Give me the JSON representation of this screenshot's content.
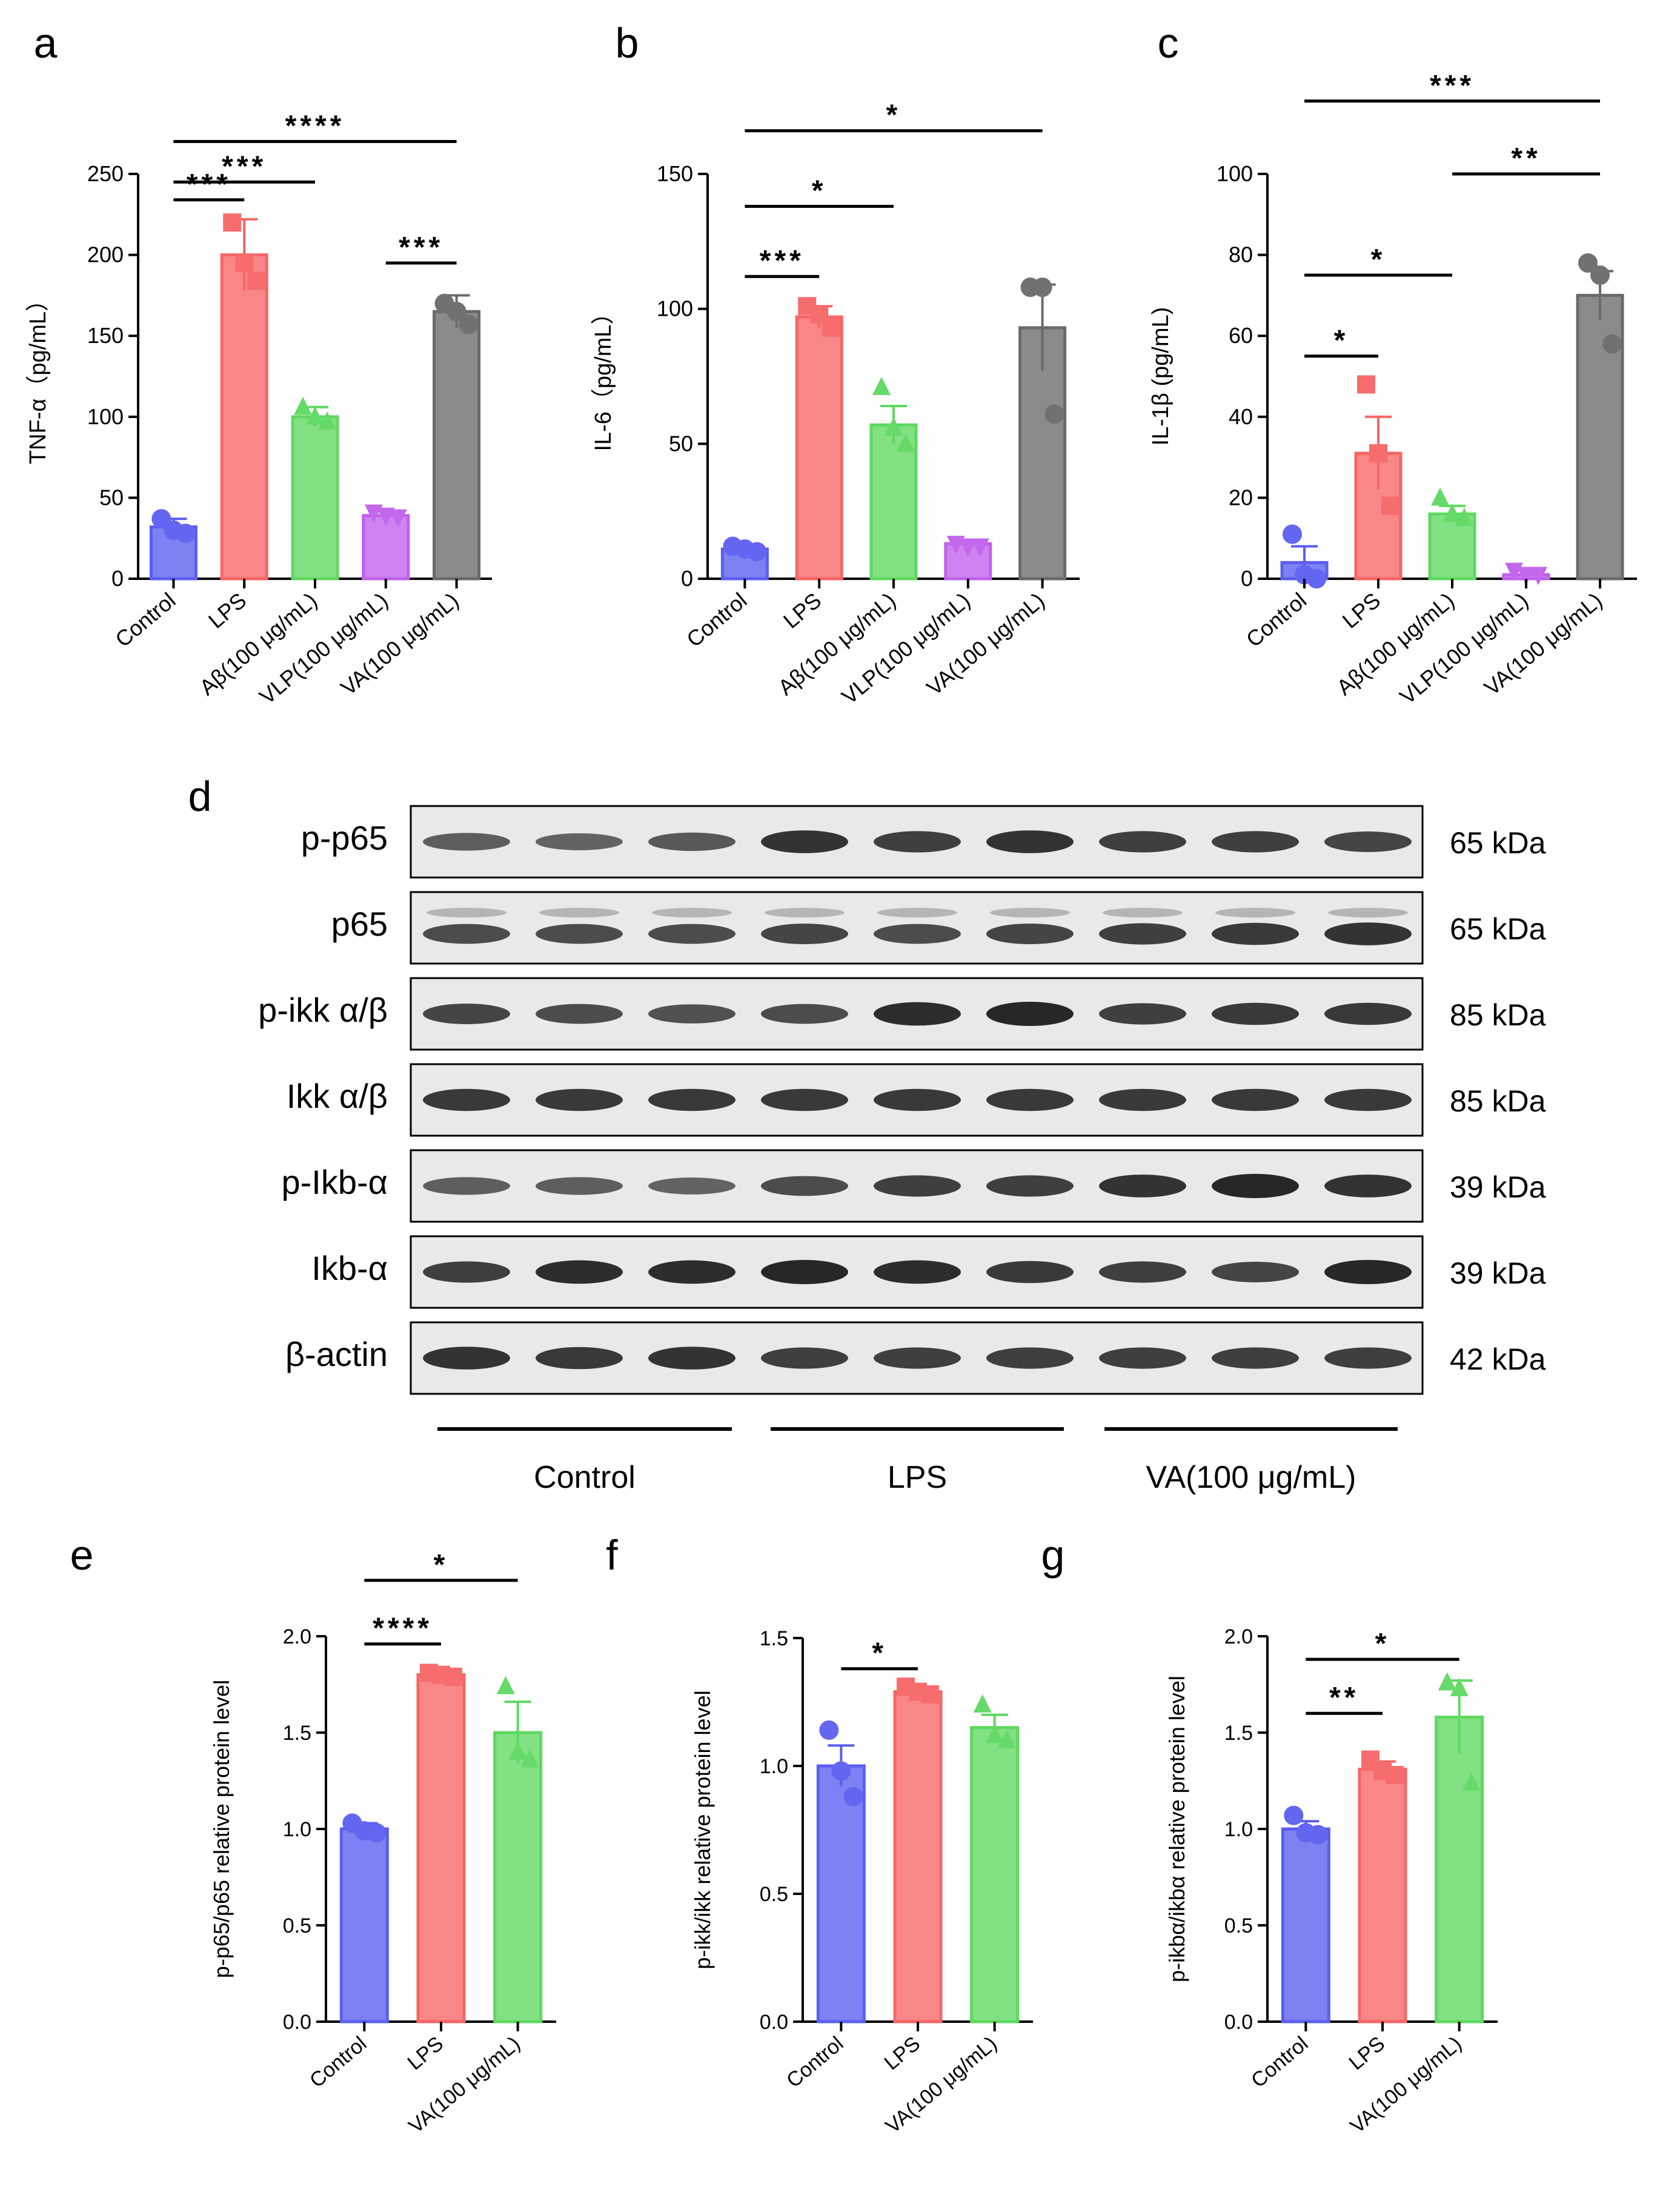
{
  "colors": {
    "control": "#5a5ef0",
    "lps": "#f76565",
    "abeta": "#5ed860",
    "vlp": "#c060ec",
    "va": "#6a6a6a",
    "axis": "#000000",
    "blot_bg": "#e9e9e9",
    "band": "#1c1c1c"
  },
  "chart_data": [
    {
      "id": "a",
      "panel_letter": "a",
      "type": "bar",
      "ylabel": "TNF-α（pg/mL）",
      "ylim": [
        0,
        250
      ],
      "yticks": [
        0,
        50,
        100,
        150,
        200,
        250
      ],
      "categories": [
        "Control",
        "LPS",
        "Aβ(100 μg/mL)",
        "VLP(100 μg/mL)",
        "VA(100 μg/mL)"
      ],
      "values": [
        32,
        200,
        100,
        39,
        165
      ],
      "errors": [
        5,
        22,
        6,
        3,
        10
      ],
      "points": [
        [
          37,
          30,
          28
        ],
        [
          220,
          195,
          184
        ],
        [
          106,
          100,
          97
        ],
        [
          41,
          39,
          38
        ],
        [
          170,
          165,
          157
        ]
      ],
      "markers": [
        "circle",
        "square",
        "triangle",
        "triangle-down",
        "circle"
      ],
      "sig": [
        {
          "from": 0,
          "to": 4,
          "label": "****",
          "y": 270
        },
        {
          "from": 0,
          "to": 2,
          "label": "***",
          "y": 245
        },
        {
          "from": 0,
          "to": 1,
          "label": "***",
          "y": 234
        },
        {
          "from": 3,
          "to": 4,
          "label": "***",
          "y": 195
        }
      ]
    },
    {
      "id": "b",
      "panel_letter": "b",
      "type": "bar",
      "ylabel": "IL-6（pg/mL）",
      "ylim": [
        0,
        150
      ],
      "yticks": [
        0,
        50,
        100,
        150
      ],
      "categories": [
        "Control",
        "LPS",
        "Aβ(100 μg/mL)",
        "VLP(100 μg/mL)",
        "VA(100 μg/mL)"
      ],
      "values": [
        11,
        97,
        57,
        13,
        93
      ],
      "errors": [
        1,
        4,
        7,
        1,
        16
      ],
      "points": [
        [
          12,
          11,
          10
        ],
        [
          101,
          98,
          93
        ],
        [
          71,
          56,
          50
        ],
        [
          13,
          12,
          12
        ],
        [
          108,
          108,
          61
        ]
      ],
      "markers": [
        "circle",
        "square",
        "triangle",
        "triangle-down",
        "circle"
      ],
      "sig": [
        {
          "from": 0,
          "to": 4,
          "label": "*",
          "y": 166
        },
        {
          "from": 0,
          "to": 2,
          "label": "*",
          "y": 138
        },
        {
          "from": 0,
          "to": 1,
          "label": "***",
          "y": 112
        }
      ]
    },
    {
      "id": "c",
      "panel_letter": "c",
      "type": "bar",
      "ylabel": "IL-1β (pg/mL)",
      "ylim": [
        0,
        100
      ],
      "yticks": [
        0,
        20,
        40,
        60,
        80,
        100
      ],
      "categories": [
        "Control",
        "LPS",
        "Aβ(100 μg/mL)",
        "VLP(100 μg/mL)",
        "VA(100 μg/mL)"
      ],
      "values": [
        4,
        31,
        16,
        1,
        70
      ],
      "errors": [
        4,
        9,
        2,
        1,
        6
      ],
      "points": [
        [
          11,
          1,
          0
        ],
        [
          48,
          31,
          18
        ],
        [
          20,
          16,
          15
        ],
        [
          2,
          1,
          1
        ],
        [
          78,
          75,
          58
        ]
      ],
      "markers": [
        "circle",
        "square",
        "triangle",
        "triangle-down",
        "circle"
      ],
      "sig": [
        {
          "from": 0,
          "to": 4,
          "label": "***",
          "y": 118
        },
        {
          "from": 2,
          "to": 4,
          "label": "**",
          "y": 100
        },
        {
          "from": 0,
          "to": 2,
          "label": "*",
          "y": 75
        },
        {
          "from": 0,
          "to": 1,
          "label": "*",
          "y": 55
        }
      ]
    },
    {
      "id": "e",
      "panel_letter": "e",
      "type": "bar",
      "ylabel": "p-p65/p65 relative protein level",
      "ylim": [
        0,
        2.0
      ],
      "yticks": [
        "0.0",
        "0.5",
        "1.0",
        "1.5",
        "2.0"
      ],
      "categories": [
        "Control",
        "LPS",
        "VA(100 μg/mL)"
      ],
      "values": [
        1.0,
        1.8,
        1.5
      ],
      "errors": [
        0.03,
        0.01,
        0.16
      ],
      "points": [
        [
          1.03,
          0.99,
          0.98
        ],
        [
          1.81,
          1.8,
          1.79
        ],
        [
          1.74,
          1.4,
          1.36
        ]
      ],
      "markers": [
        "circle",
        "square",
        "triangle"
      ],
      "sig": [
        {
          "from": 0,
          "to": 2,
          "label": "*",
          "y": 2.29
        },
        {
          "from": 0,
          "to": 1,
          "label": "****",
          "y": 1.96
        }
      ]
    },
    {
      "id": "f",
      "panel_letter": "f",
      "type": "bar",
      "ylabel": "p-ikk/ikk relative protein level",
      "ylim": [
        0,
        1.5
      ],
      "yticks": [
        "0.0",
        "0.5",
        "1.0",
        "1.5"
      ],
      "categories": [
        "Control",
        "LPS",
        "VA(100 μg/mL)"
      ],
      "values": [
        1.0,
        1.29,
        1.15
      ],
      "errors": [
        0.08,
        0.02,
        0.05
      ],
      "points": [
        [
          1.14,
          0.98,
          0.88
        ],
        [
          1.31,
          1.29,
          1.28
        ],
        [
          1.24,
          1.12,
          1.1
        ]
      ],
      "markers": [
        "circle",
        "square",
        "triangle"
      ],
      "sig": [
        {
          "from": 0,
          "to": 1,
          "label": "*",
          "y": 1.38
        }
      ]
    },
    {
      "id": "g",
      "panel_letter": "g",
      "type": "bar",
      "ylabel": "p-ikbα/ikbα relative protein level",
      "ylim": [
        0,
        2.0
      ],
      "yticks": [
        "0.0",
        "0.5",
        "1.0",
        "1.5",
        "2.0"
      ],
      "categories": [
        "Control",
        "LPS",
        "VA(100 μg/mL)"
      ],
      "values": [
        1.0,
        1.31,
        1.58
      ],
      "errors": [
        0.04,
        0.04,
        0.19
      ],
      "points": [
        [
          1.07,
          0.98,
          0.97
        ],
        [
          1.36,
          1.3,
          1.28
        ],
        [
          1.76,
          1.73,
          1.24
        ]
      ],
      "markers": [
        "circle",
        "square",
        "triangle"
      ],
      "sig": [
        {
          "from": 0,
          "to": 2,
          "label": "*",
          "y": 1.88
        },
        {
          "from": 0,
          "to": 1,
          "label": "**",
          "y": 1.6
        }
      ]
    }
  ],
  "western": {
    "panel_letter": "d",
    "rows": [
      {
        "label": "p-p65",
        "kda": "65 kDa",
        "intensity": [
          0.55,
          0.5,
          0.6,
          0.9,
          0.8,
          0.9,
          0.8,
          0.8,
          0.75
        ]
      },
      {
        "label": "p65",
        "kda": "65 kDa",
        "intensity": [
          0.7,
          0.7,
          0.7,
          0.75,
          0.7,
          0.75,
          0.8,
          0.85,
          0.9
        ]
      },
      {
        "label": "p-ikk α/β",
        "kda": "85 kDa",
        "intensity": [
          0.75,
          0.7,
          0.65,
          0.7,
          0.95,
          1.0,
          0.8,
          0.85,
          0.85
        ]
      },
      {
        "label": "Ikk α/β",
        "kda": "85 kDa",
        "intensity": [
          0.85,
          0.85,
          0.85,
          0.85,
          0.85,
          0.85,
          0.85,
          0.85,
          0.85
        ]
      },
      {
        "label": "p-Ikb-α",
        "kda": "39 kDa",
        "intensity": [
          0.55,
          0.55,
          0.5,
          0.7,
          0.8,
          0.8,
          0.9,
          1.0,
          0.9
        ]
      },
      {
        "label": "Ikb-α",
        "kda": "39 kDa",
        "intensity": [
          0.8,
          0.95,
          0.95,
          1.0,
          0.95,
          0.85,
          0.8,
          0.75,
          1.0
        ]
      },
      {
        "label": "β-actin",
        "kda": "42 kDa",
        "intensity": [
          0.9,
          0.85,
          0.9,
          0.8,
          0.8,
          0.8,
          0.8,
          0.8,
          0.8
        ]
      }
    ],
    "groups": [
      "Control",
      "LPS",
      "VA(100 μg/mL)"
    ]
  }
}
